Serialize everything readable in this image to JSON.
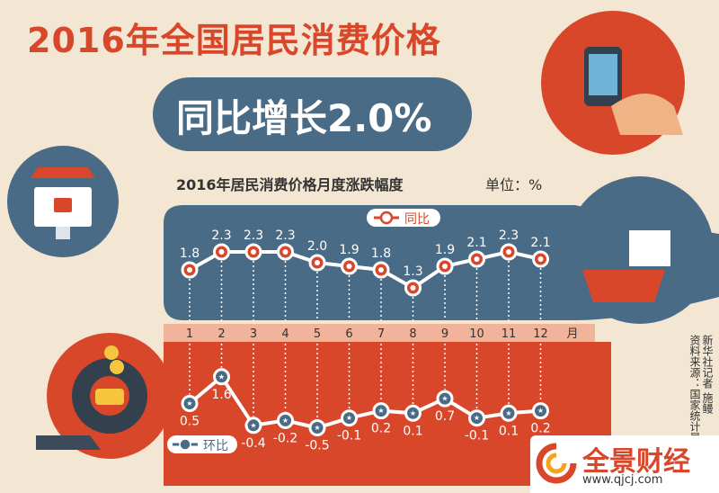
{
  "title": "2016年全国居民消费价格",
  "subtitle": "同比增长2.0%",
  "chart_title": "2016年居民消费价格月度涨跌幅度",
  "unit": "单位：%",
  "source": {
    "reporter": "新华社记者 施鳗",
    "data_source": "资料来源：国家统计局"
  },
  "watermark": {
    "name": "全景财经",
    "url": "www.qjcj.com"
  },
  "colors": {
    "accent": "#d9472b",
    "navy": "#4a6b86",
    "background": "#f3e6d2"
  },
  "chart_data": {
    "type": "line",
    "title": "2016年居民消费价格月度涨跌幅度",
    "unit": "%",
    "categories": [
      "1",
      "2",
      "3",
      "4",
      "5",
      "6",
      "7",
      "8",
      "9",
      "10",
      "11",
      "12"
    ],
    "x_suffix": "月",
    "series": [
      {
        "name": "同比",
        "values": [
          1.8,
          2.3,
          2.3,
          2.3,
          2.0,
          1.9,
          1.8,
          1.3,
          1.9,
          2.1,
          2.3,
          2.1
        ],
        "labels": [
          "1.8",
          "2.3",
          "2.3",
          "2.3",
          "2.0",
          "1.9",
          "1.8",
          "1.3",
          "1.9",
          "2.1",
          "2.3",
          "2.1"
        ]
      },
      {
        "name": "环比",
        "values": [
          0.5,
          1.6,
          -0.4,
          -0.2,
          -0.5,
          -0.1,
          0.2,
          0.1,
          0.7,
          -0.1,
          0.1,
          0.2
        ],
        "labels": [
          "0.5",
          "1.6",
          "-0.4",
          "-0.2",
          "-0.5",
          "-0.1",
          "0.2",
          "0.1",
          "0.7",
          "-0.1",
          "0.1",
          "0.2"
        ]
      }
    ],
    "grid": false,
    "legend": "top-center"
  }
}
